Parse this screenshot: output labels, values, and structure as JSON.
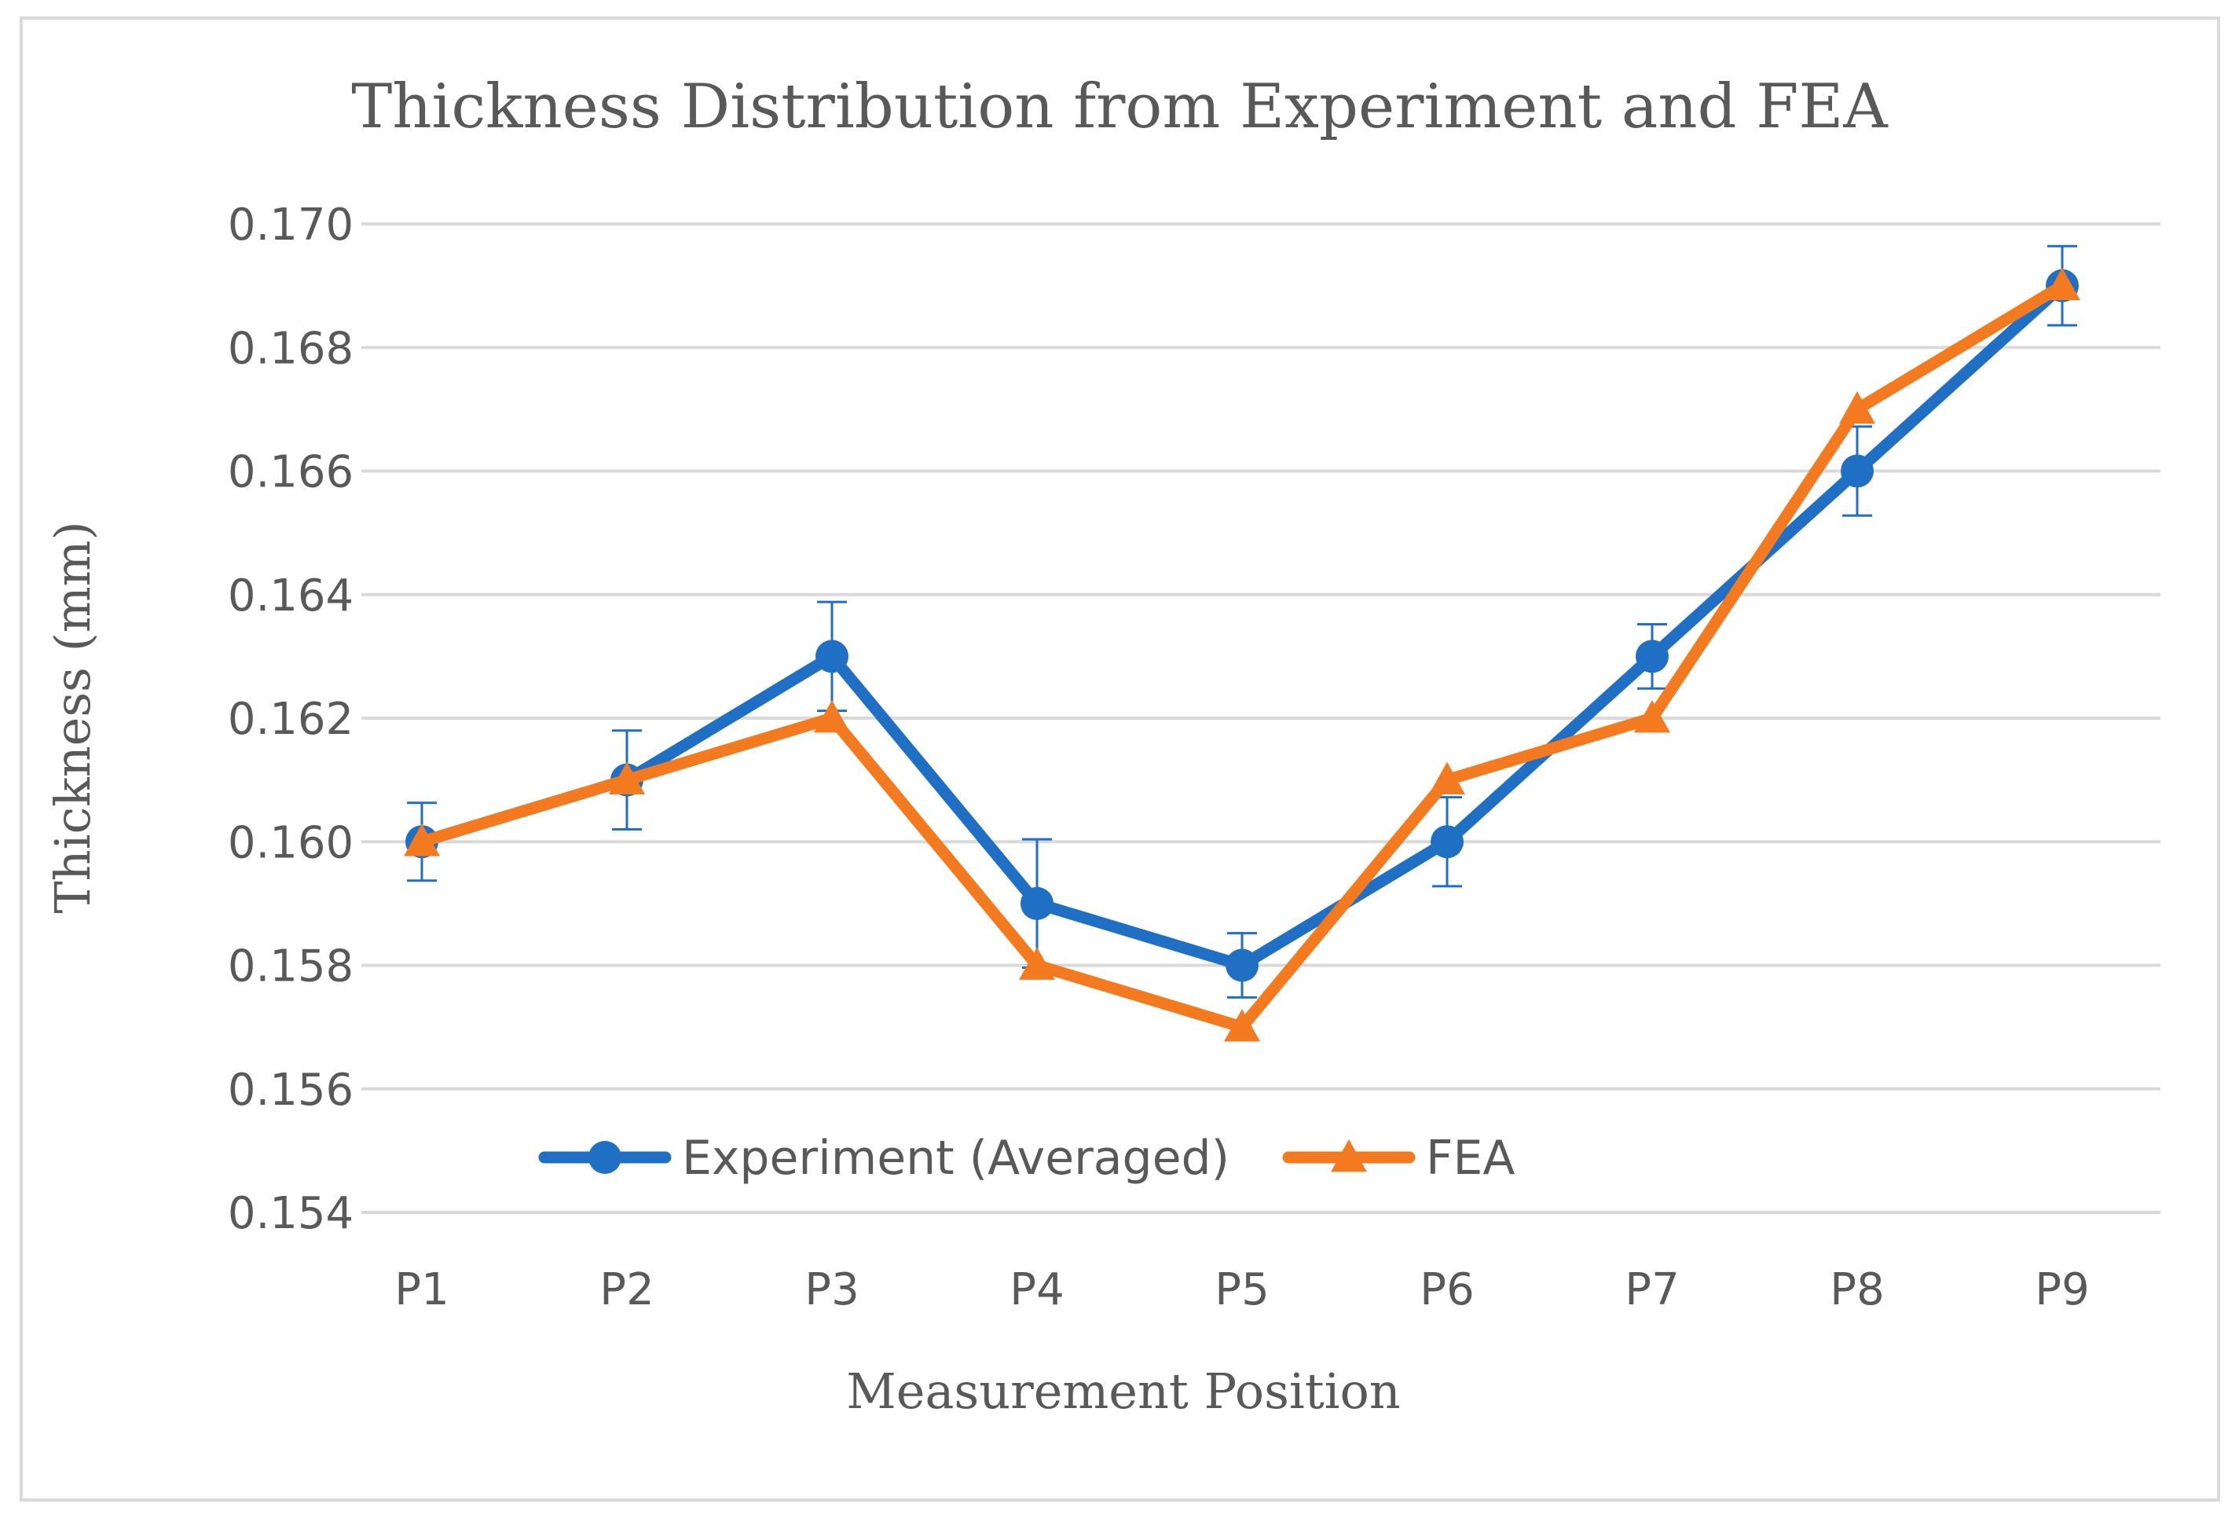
{
  "chart_data": {
    "type": "line",
    "title": "Thickness Distribution from Experiment and FEA",
    "xlabel": "Measurement Position",
    "ylabel": "Thickness (mm)",
    "categories": [
      "P1",
      "P2",
      "P3",
      "P4",
      "P5",
      "P6",
      "P7",
      "P8",
      "P9"
    ],
    "ylim": [
      0.154,
      0.17
    ],
    "ytick_values": [
      0.154,
      0.156,
      0.158,
      0.16,
      0.162,
      0.164,
      0.166,
      0.168,
      0.17
    ],
    "yticks": [
      "0.154",
      "0.156",
      "0.158",
      "0.160",
      "0.162",
      "0.164",
      "0.166",
      "0.168",
      "0.170"
    ],
    "grid": true,
    "legend_position": "bottom-center-inside",
    "series": [
      {
        "name": "Experiment (Averaged)",
        "color": "#1f6fc5",
        "marker": "circle",
        "values": [
          0.16,
          0.161,
          0.163,
          0.159,
          0.158,
          0.16,
          0.163,
          0.166,
          0.169
        ],
        "error": [
          0.00063,
          0.0008,
          0.00088,
          0.00104,
          0.00052,
          0.00072,
          0.00052,
          0.00072,
          0.00064
        ]
      },
      {
        "name": "FEA",
        "color": "#f47a20",
        "marker": "triangle",
        "values": [
          0.16,
          0.161,
          0.162,
          0.158,
          0.157,
          0.161,
          0.162,
          0.167,
          0.169
        ]
      }
    ]
  }
}
